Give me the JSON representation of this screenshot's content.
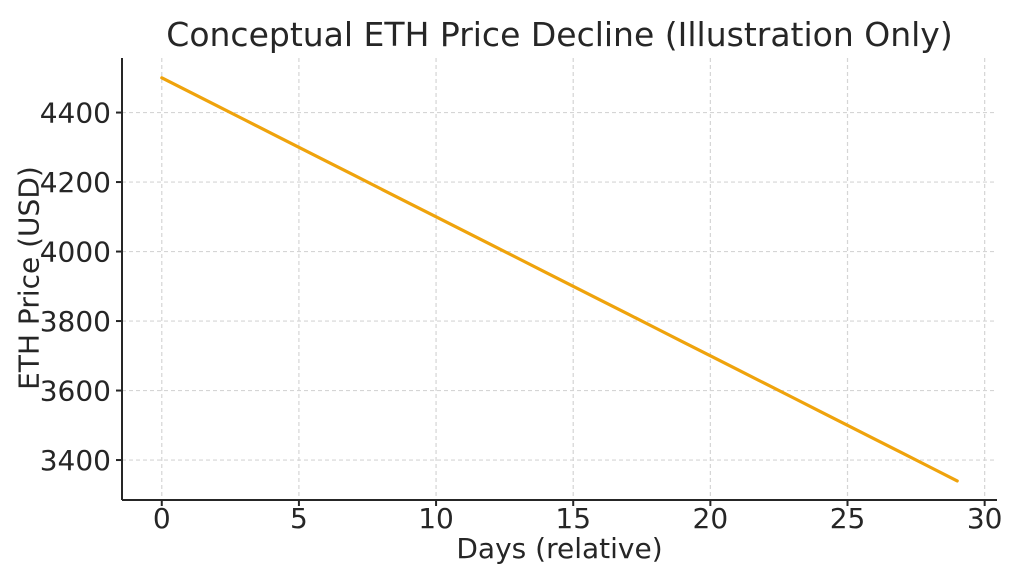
{
  "chart_data": {
    "type": "line",
    "title": "Conceptual ETH Price Decline (Illustration Only)",
    "xlabel": "Days (relative)",
    "ylabel": "ETH Price (USD)",
    "x": [
      0,
      1,
      2,
      3,
      4,
      5,
      6,
      7,
      8,
      9,
      10,
      11,
      12,
      13,
      14,
      15,
      16,
      17,
      18,
      19,
      20,
      21,
      22,
      23,
      24,
      25,
      26,
      27,
      28,
      29
    ],
    "y": [
      4500,
      4460,
      4420,
      4380,
      4340,
      4300,
      4260,
      4220,
      4180,
      4140,
      4100,
      4060,
      4020,
      3980,
      3940,
      3900,
      3860,
      3820,
      3780,
      3740,
      3700,
      3660,
      3620,
      3580,
      3540,
      3500,
      3460,
      3420,
      3380,
      3340
    ],
    "xticks": [
      0,
      5,
      10,
      15,
      20,
      25,
      30
    ],
    "yticks": [
      3400,
      3600,
      3800,
      4000,
      4200,
      4400
    ],
    "xlim": [
      -1.45,
      30.45
    ],
    "ylim": [
      3285,
      4557
    ],
    "grid": true,
    "grid_style": "dashed",
    "legend": null,
    "line_color": "#EFA30C",
    "line_width": 3.2,
    "grid_color": "#d5d5d5",
    "axis_color": "#262626",
    "text_color": "#262626",
    "background_color": "#ffffff"
  }
}
